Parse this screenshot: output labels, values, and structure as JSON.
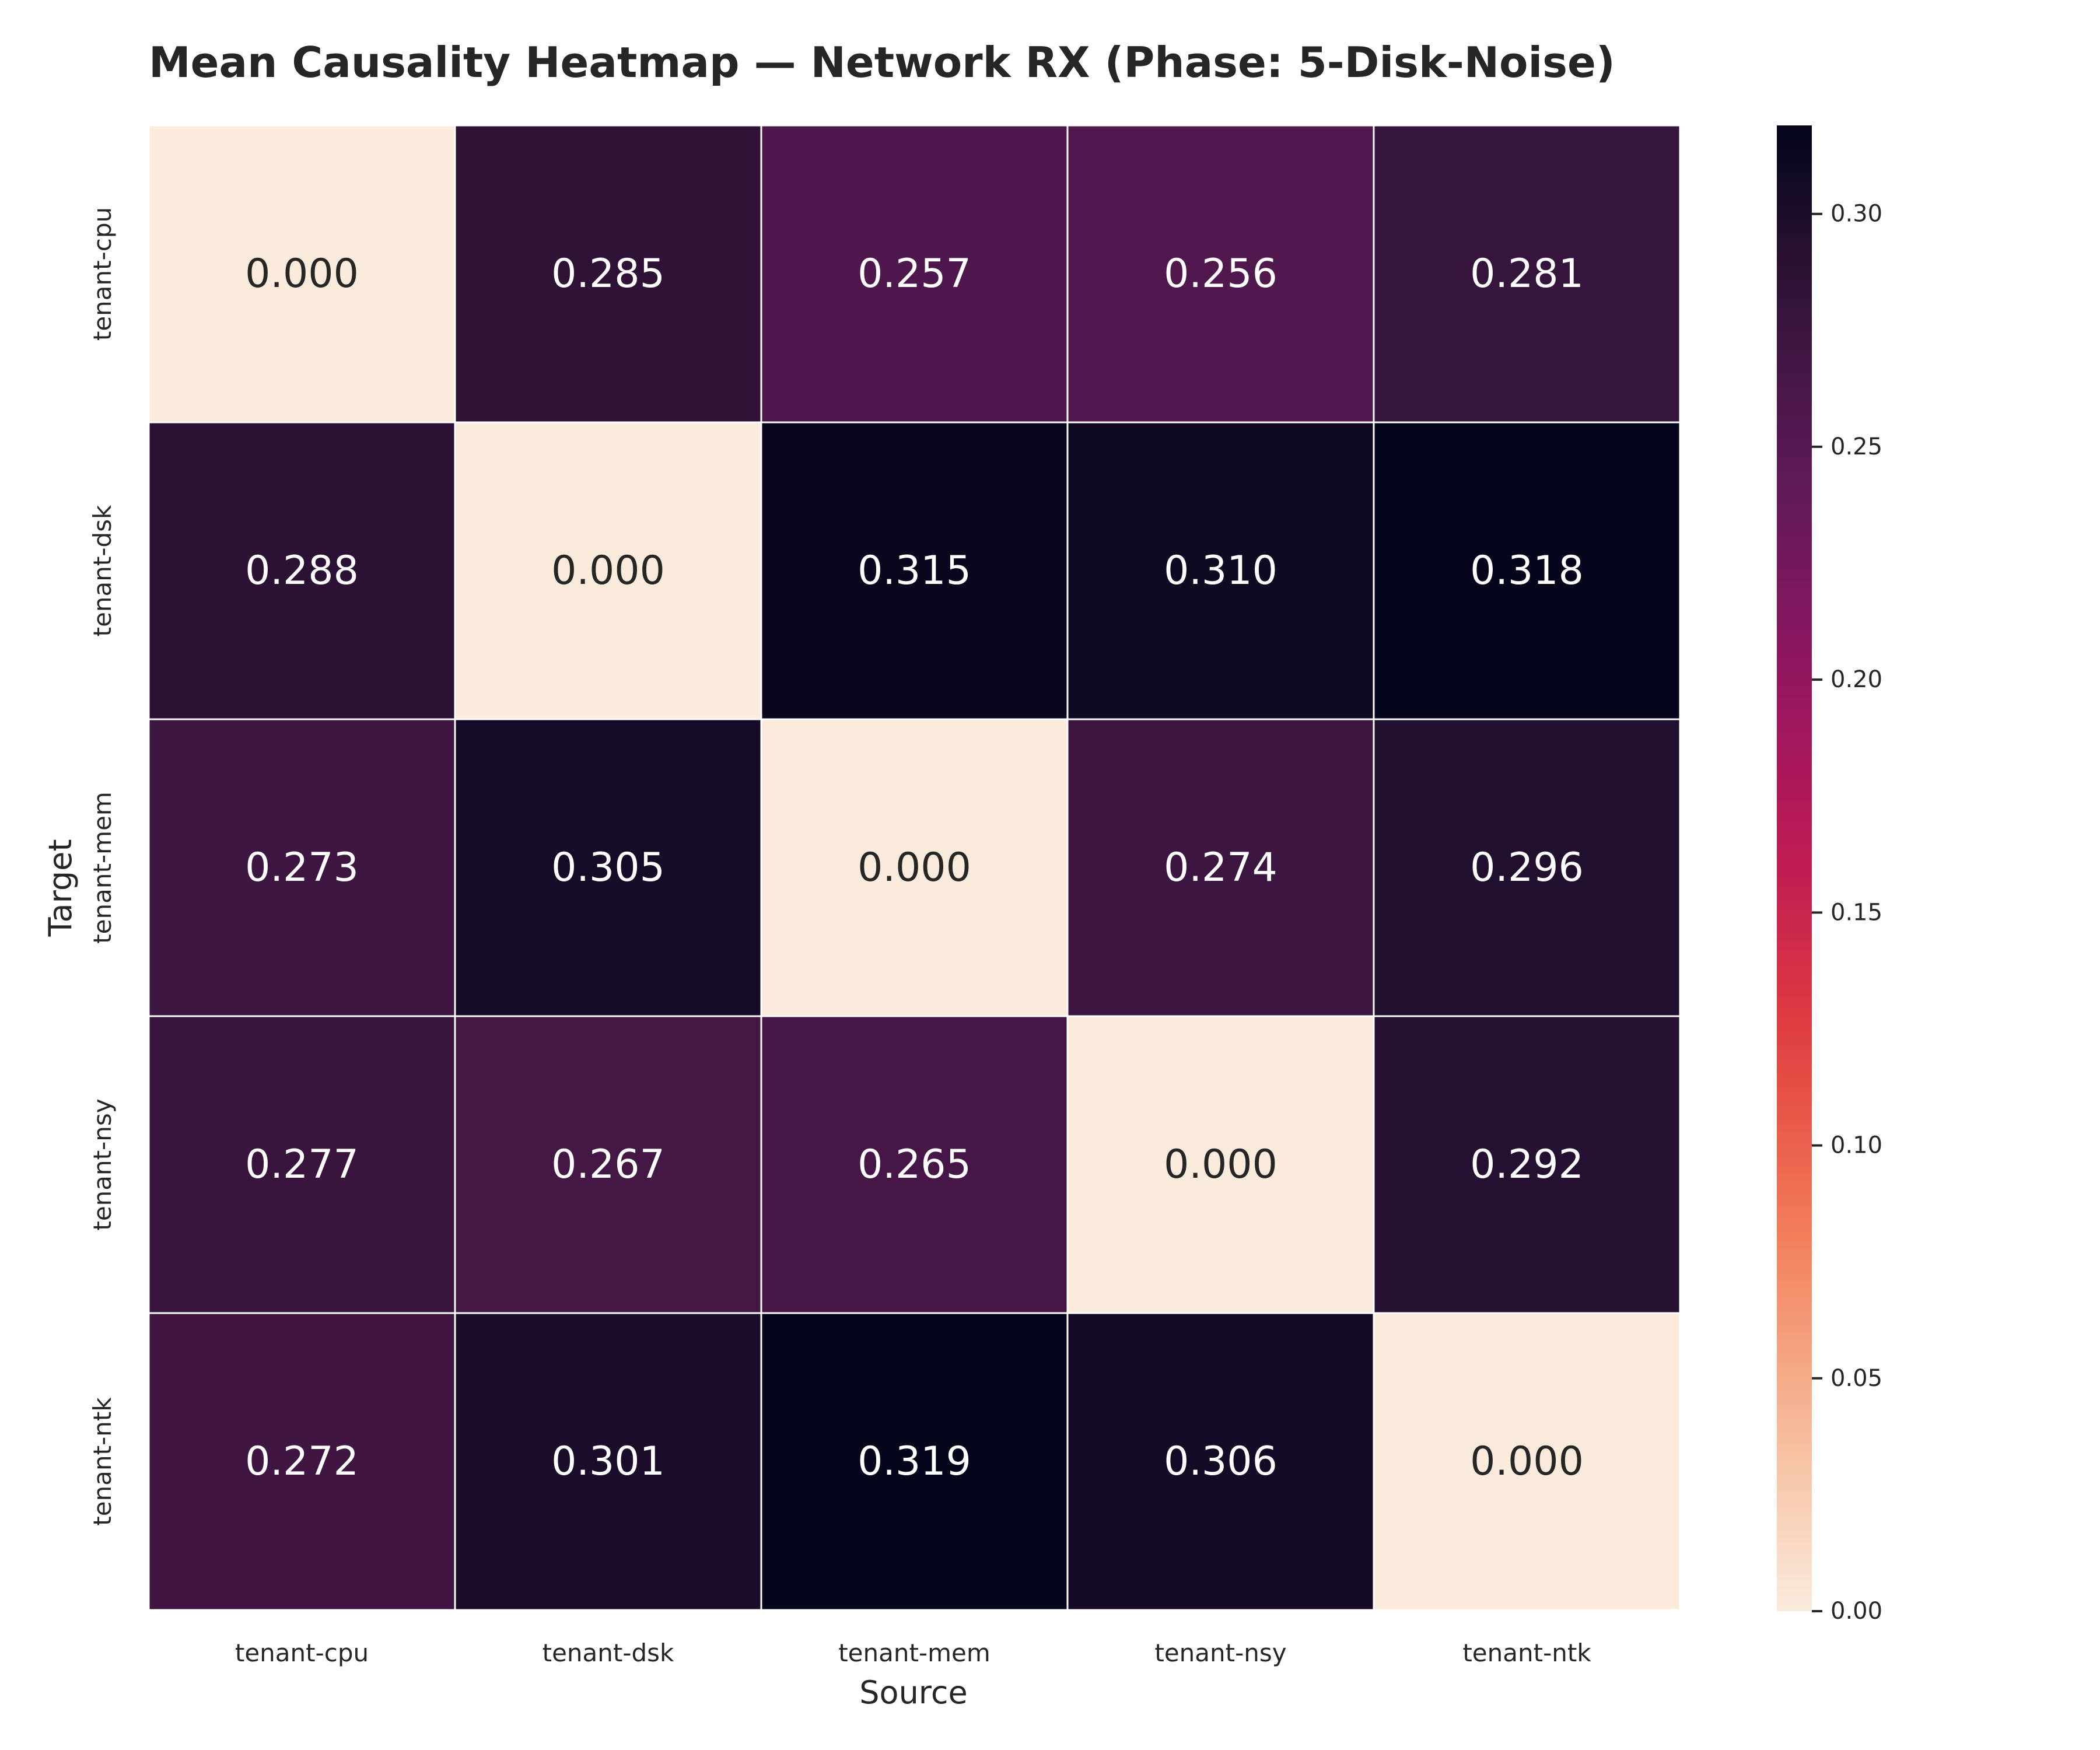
{
  "chart_data": {
    "type": "heatmap",
    "title": "Mean Causality Heatmap — Network RX (Phase: 5-Disk-Noise)",
    "xlabel": "Source",
    "ylabel": "Target",
    "x_categories": [
      "tenant-cpu",
      "tenant-dsk",
      "tenant-mem",
      "tenant-nsy",
      "tenant-ntk"
    ],
    "y_categories": [
      "tenant-cpu",
      "tenant-dsk",
      "tenant-mem",
      "tenant-nsy",
      "tenant-ntk"
    ],
    "values": [
      [
        0.0,
        0.285,
        0.257,
        0.256,
        0.281
      ],
      [
        0.288,
        0.0,
        0.315,
        0.31,
        0.318
      ],
      [
        0.273,
        0.305,
        0.0,
        0.274,
        0.296
      ],
      [
        0.277,
        0.267,
        0.265,
        0.0,
        0.292
      ],
      [
        0.272,
        0.301,
        0.319,
        0.306,
        0.0
      ]
    ],
    "value_format": "0.000",
    "colormap": "rocket_r",
    "colorbar": {
      "vmin": 0.0,
      "vmax": 0.319,
      "ticks": [
        0.0,
        0.05,
        0.1,
        0.15,
        0.2,
        0.25,
        0.3
      ],
      "tick_labels": [
        "0.00",
        "0.05",
        "0.10",
        "0.15",
        "0.20",
        "0.25",
        "0.30"
      ]
    },
    "grid": false,
    "cell_border_color": "#ffffff",
    "light_text_color": "#ffffff",
    "dark_text_color": "#262626"
  }
}
